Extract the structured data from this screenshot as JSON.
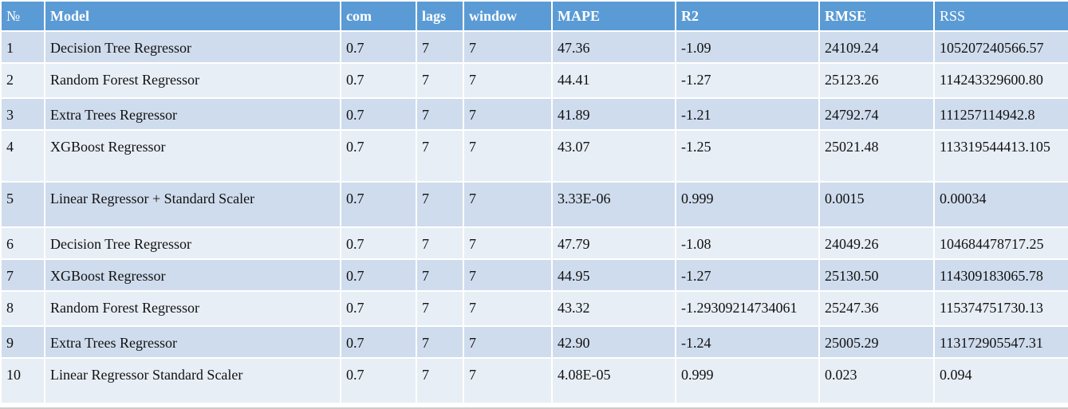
{
  "table": {
    "headers": [
      "№",
      "Model",
      "com",
      "lags",
      "window",
      "MAPE",
      "R2",
      "RMSE",
      "RSS"
    ],
    "rows": [
      [
        "1",
        "Decision Tree Regressor",
        "0.7",
        "7",
        "7",
        "47.36",
        "-1.09",
        "24109.24",
        "105207240566.57"
      ],
      [
        "2",
        "Random Forest Regressor",
        "0.7",
        "7",
        "7",
        "44.41",
        "-1.27",
        "25123.26",
        "114243329600.80"
      ],
      [
        "3",
        "Extra Trees Regressor",
        "0.7",
        "7",
        "7",
        "41.89",
        "-1.21",
        "24792.74",
        "111257114942.8"
      ],
      [
        "4",
        "XGBoost Regressor",
        "0.7",
        "7",
        "7",
        "43.07",
        "-1.25",
        "25021.48",
        "113319544413.105"
      ],
      [
        "5",
        "Linear Regressor + Standard Scaler",
        "0.7",
        "7",
        "7",
        "3.33E-06",
        "0.999",
        "0.0015",
        "0.00034"
      ],
      [
        "6",
        "Decision Tree Regressor",
        "0.7",
        "7",
        "7",
        "47.79",
        "-1.08",
        "24049.26",
        "104684478717.25"
      ],
      [
        "7",
        "XGBoost Regressor",
        "0.7",
        "7",
        "7",
        "44.95",
        "-1.27",
        "25130.50",
        "114309183065.78"
      ],
      [
        "8",
        "Random Forest Regressor",
        "0.7",
        "7",
        "7",
        "43.32",
        "-1.29309214734061",
        "25247.36",
        "115374751730.13"
      ],
      [
        "9",
        "Extra Trees Regressor",
        "0.7",
        "7",
        "7",
        "42.90",
        "-1.24",
        "25005.29",
        "113172905547.31"
      ],
      [
        "10",
        "Linear Regressor Standard Scaler",
        "0.7",
        "7",
        "7",
        "4.08E-05",
        "0.999",
        "0.023",
        "0.094"
      ]
    ]
  }
}
